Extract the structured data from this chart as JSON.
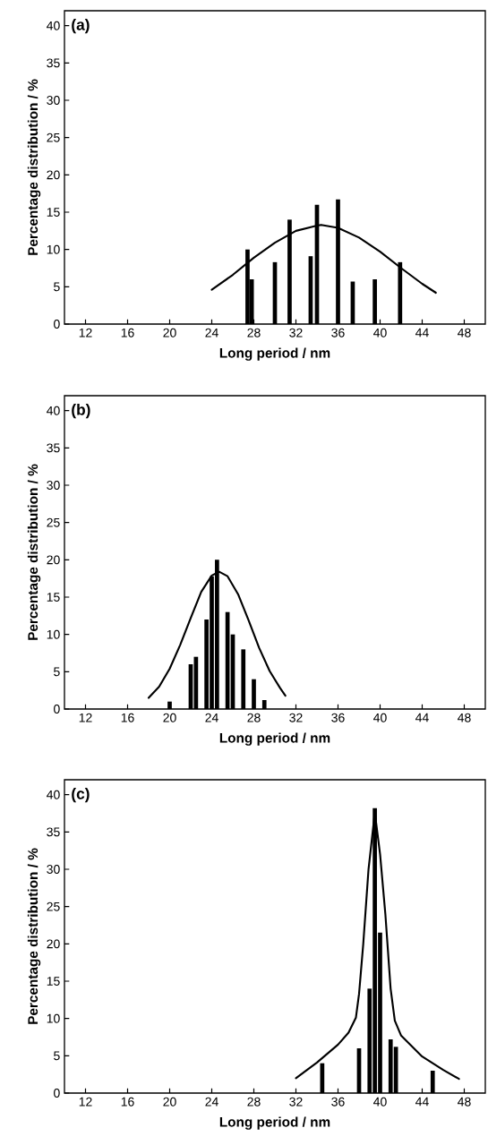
{
  "chart_data": [
    {
      "type": "bar",
      "xlabel": "Long period / nm",
      "ylabel": "Percentage distribution / %",
      "annotations": [
        "(a)"
      ],
      "xlim": [
        10,
        50
      ],
      "ylim": [
        0,
        42
      ],
      "xticks": [
        12,
        16,
        20,
        24,
        28,
        32,
        36,
        40,
        44,
        48
      ],
      "yticks": [
        0,
        5,
        10,
        15,
        20,
        25,
        30,
        35,
        40
      ],
      "series": [
        {
          "color": "#000000",
          "x": [
            27.4,
            27.8,
            30,
            31.4,
            33.4,
            34,
            36,
            37.4,
            39.5,
            41.9
          ],
          "values": [
            10,
            6,
            8.3,
            14,
            9.1,
            16,
            16.7,
            5.7,
            6,
            8.3
          ]
        },
        {
          "type": "line",
          "color": "#000000",
          "x": [
            24,
            26,
            27.4,
            28,
            30,
            32,
            34,
            34.4,
            36,
            38,
            40,
            42,
            44,
            45.3
          ],
          "values": [
            4.6,
            6.6,
            8.2,
            8.9,
            10.9,
            12.5,
            13.2,
            13.3,
            12.9,
            11.6,
            9.7,
            7.5,
            5.4,
            4.2
          ]
        }
      ]
    },
    {
      "type": "bar",
      "xlabel": "Long period / nm",
      "ylabel": "Percentage distribution / %",
      "annotations": [
        "(b)"
      ],
      "xlim": [
        10,
        50
      ],
      "ylim": [
        0,
        42
      ],
      "xticks": [
        12,
        16,
        20,
        24,
        28,
        32,
        36,
        40,
        44,
        48
      ],
      "yticks": [
        0,
        5,
        10,
        15,
        20,
        25,
        30,
        35,
        40
      ],
      "series": [
        {
          "color": "#000000",
          "x": [
            20,
            22,
            22.5,
            23.5,
            24,
            24.5,
            25.5,
            26,
            27,
            28,
            29
          ],
          "values": [
            1,
            6,
            7,
            12,
            17.8,
            20,
            13,
            10,
            8,
            4,
            1.2
          ]
        },
        {
          "type": "line",
          "color": "#000000",
          "x": [
            18,
            19,
            20,
            21,
            22,
            23,
            24,
            24.7,
            25.5,
            26.5,
            27.5,
            28.5,
            29.5,
            30.5,
            31
          ],
          "values": [
            1.5,
            3,
            5.4,
            8.6,
            12.2,
            15.7,
            17.9,
            18.4,
            17.8,
            15.4,
            11.9,
            8.2,
            5.1,
            2.8,
            1.8
          ]
        }
      ]
    },
    {
      "type": "bar",
      "xlabel": "Long period / nm",
      "ylabel": "Percentage distribution / %",
      "annotations": [
        "(c)"
      ],
      "xlim": [
        10,
        50
      ],
      "ylim": [
        0,
        42
      ],
      "xticks": [
        12,
        16,
        20,
        24,
        28,
        32,
        36,
        40,
        44,
        48
      ],
      "yticks": [
        0,
        5,
        10,
        15,
        20,
        25,
        30,
        35,
        40
      ],
      "series": [
        {
          "color": "#000000",
          "x": [
            34.5,
            38,
            39,
            39.5,
            40,
            41,
            41.5,
            45
          ],
          "values": [
            4,
            6,
            14,
            38.2,
            21.5,
            7.2,
            6.2,
            3
          ]
        },
        {
          "type": "line",
          "color": "#000000",
          "x": [
            32,
            34,
            36,
            37,
            37.7,
            38,
            38.4,
            38.9,
            39.5,
            40,
            40.5,
            41,
            41.4,
            42,
            44,
            46,
            47.5
          ],
          "values": [
            2,
            4.1,
            6.5,
            8.1,
            10.1,
            13.3,
            20,
            30,
            37.6,
            32,
            24,
            14,
            9.7,
            7.7,
            4.9,
            3.1,
            1.9
          ]
        }
      ]
    }
  ]
}
